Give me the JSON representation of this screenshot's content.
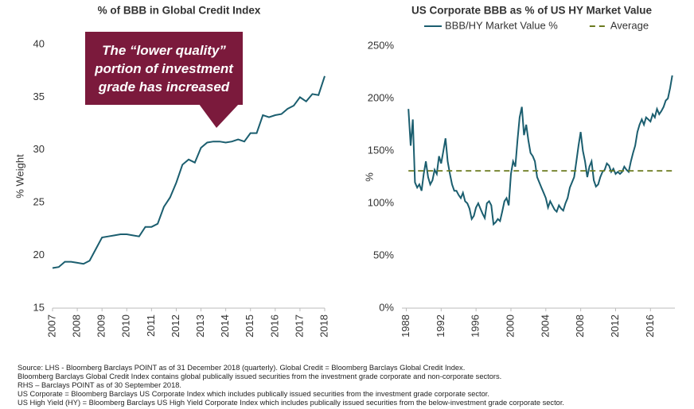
{
  "chart_data": [
    {
      "type": "line",
      "title": "% of BBB in Global Credit Index",
      "y_label": "% Weight",
      "annotation": "The “lower quality” portion of investment grade has increased",
      "color": "#1b5e6f",
      "x": [
        2007,
        2007.25,
        2007.5,
        2007.75,
        2008,
        2008.25,
        2008.5,
        2008.75,
        2009,
        2009.25,
        2009.5,
        2009.75,
        2010,
        2010.25,
        2010.5,
        2010.75,
        2011,
        2011.25,
        2011.5,
        2011.75,
        2012,
        2012.25,
        2012.5,
        2012.75,
        2013,
        2013.25,
        2013.5,
        2013.75,
        2014,
        2014.25,
        2014.5,
        2014.75,
        2015,
        2015.25,
        2015.5,
        2015.75,
        2016,
        2016.25,
        2016.5,
        2016.75,
        2017,
        2017.25,
        2017.5,
        2017.75,
        2018
      ],
      "values": [
        18.8,
        18.9,
        19.4,
        19.4,
        19.3,
        19.2,
        19.5,
        20.6,
        21.7,
        21.8,
        21.9,
        22.0,
        22.0,
        21.9,
        21.8,
        22.7,
        22.7,
        23.0,
        24.6,
        25.5,
        26.9,
        28.6,
        29.1,
        28.8,
        30.2,
        30.7,
        30.8,
        30.8,
        30.7,
        30.8,
        31.0,
        30.8,
        31.6,
        31.6,
        33.3,
        33.1,
        33.3,
        33.4,
        33.9,
        34.2,
        35.0,
        34.6,
        35.3,
        35.2,
        37.0
      ],
      "xlim": [
        2007,
        2018
      ],
      "xticks": [
        2007,
        2008,
        2009,
        2010,
        2011,
        2012,
        2013,
        2014,
        2015,
        2016,
        2017,
        2018
      ],
      "ylim": [
        15,
        40
      ],
      "yticks": [
        15,
        20,
        25,
        30,
        35,
        40
      ],
      "grid": false
    },
    {
      "type": "line",
      "title": "US Corporate BBB as % of US HY Market Value",
      "y_label": "%",
      "legend": "top",
      "series": [
        {
          "name": "BBB/HY Market Value %",
          "color": "#1b5e6f",
          "line_style": "solid",
          "x": [
            1988.25,
            1988.5,
            1988.75,
            1989,
            1989.25,
            1989.5,
            1989.75,
            1990,
            1990.25,
            1990.5,
            1990.75,
            1991,
            1991.25,
            1991.5,
            1991.75,
            1992,
            1992.25,
            1992.5,
            1992.75,
            1993,
            1993.25,
            1993.5,
            1993.75,
            1994,
            1994.25,
            1994.5,
            1994.75,
            1995,
            1995.25,
            1995.5,
            1995.75,
            1996,
            1996.25,
            1996.5,
            1996.75,
            1997,
            1997.25,
            1997.5,
            1997.75,
            1998,
            1998.25,
            1998.5,
            1998.75,
            1999,
            1999.25,
            1999.5,
            1999.75,
            2000,
            2000.25,
            2000.5,
            2000.75,
            2001,
            2001.25,
            2001.5,
            2001.75,
            2002,
            2002.25,
            2002.5,
            2002.75,
            2003,
            2003.25,
            2003.5,
            2003.75,
            2004,
            2004.25,
            2004.5,
            2004.75,
            2005,
            2005.25,
            2005.5,
            2005.75,
            2006,
            2006.25,
            2006.5,
            2006.75,
            2007,
            2007.25,
            2007.5,
            2007.75,
            2008,
            2008.25,
            2008.5,
            2008.75,
            2009,
            2009.25,
            2009.5,
            2009.75,
            2010,
            2010.25,
            2010.5,
            2010.75,
            2011,
            2011.25,
            2011.5,
            2011.75,
            2012,
            2012.25,
            2012.5,
            2012.75,
            2013,
            2013.25,
            2013.5,
            2013.75,
            2014,
            2014.25,
            2014.5,
            2014.75,
            2015,
            2015.25,
            2015.5,
            2015.75,
            2016,
            2016.25,
            2016.5,
            2016.75,
            2017,
            2017.25,
            2017.5,
            2017.75,
            2018,
            2018.25,
            2018.5
          ],
          "values": [
            190,
            155,
            180,
            120,
            115,
            118,
            112,
            128,
            140,
            125,
            118,
            122,
            132,
            128,
            145,
            138,
            150,
            162,
            140,
            128,
            118,
            112,
            112,
            108,
            105,
            110,
            102,
            100,
            95,
            85,
            88,
            96,
            100,
            95,
            90,
            86,
            100,
            102,
            98,
            80,
            82,
            85,
            83,
            92,
            102,
            105,
            98,
            128,
            140,
            135,
            160,
            182,
            192,
            165,
            175,
            160,
            148,
            145,
            140,
            125,
            120,
            115,
            110,
            105,
            96,
            102,
            98,
            94,
            92,
            98,
            95,
            93,
            100,
            105,
            115,
            120,
            125,
            140,
            155,
            168,
            150,
            140,
            125,
            135,
            140,
            122,
            116,
            118,
            125,
            130,
            132,
            138,
            136,
            130,
            133,
            128,
            130,
            128,
            130,
            135,
            132,
            130,
            140,
            148,
            155,
            168,
            175,
            180,
            175,
            182,
            180,
            178,
            185,
            182,
            190,
            185,
            188,
            192,
            198,
            200,
            210,
            222
          ]
        },
        {
          "name": "Average",
          "color": "#6b7a1f",
          "line_style": "dashed",
          "x": [
            1988.25,
            2018.5
          ],
          "values": [
            131,
            131
          ]
        }
      ],
      "xlim": [
        1987.5,
        2018.8
      ],
      "xticks": [
        1988,
        1992,
        1996,
        2000,
        2004,
        2008,
        2012,
        2016
      ],
      "ylim": [
        0,
        250
      ],
      "yticks": [
        {
          "value": 0,
          "label": "0%"
        },
        {
          "value": 50,
          "label": "50%"
        },
        {
          "value": 100,
          "label": "100%"
        },
        {
          "value": 150,
          "label": "150%"
        },
        {
          "value": 200,
          "label": "200%"
        },
        {
          "value": 250,
          "label": "250%"
        }
      ],
      "grid": false
    }
  ],
  "footnotes": [
    "Source: LHS - Bloomberg Barclays POINT as of 31 December 2018 (quarterly). Global Credit = Bloomberg Barclays Global Credit Index.",
    "Bloomberg Barclays Global Credit Index contains global publically issued securities from the investment grade corporate and non-corporate sectors.",
    "RHS – Barclays POINT as of 30 September 2018.",
    "US Corporate = Bloomberg Barclays US Corporate Index which includes publically issued securities from the investment grade corporate sector.",
    "US High Yield (HY) = Bloomberg Barclays US High Yield Corporate Index which includes publically issued securities from the below-investment grade corporate sector."
  ]
}
